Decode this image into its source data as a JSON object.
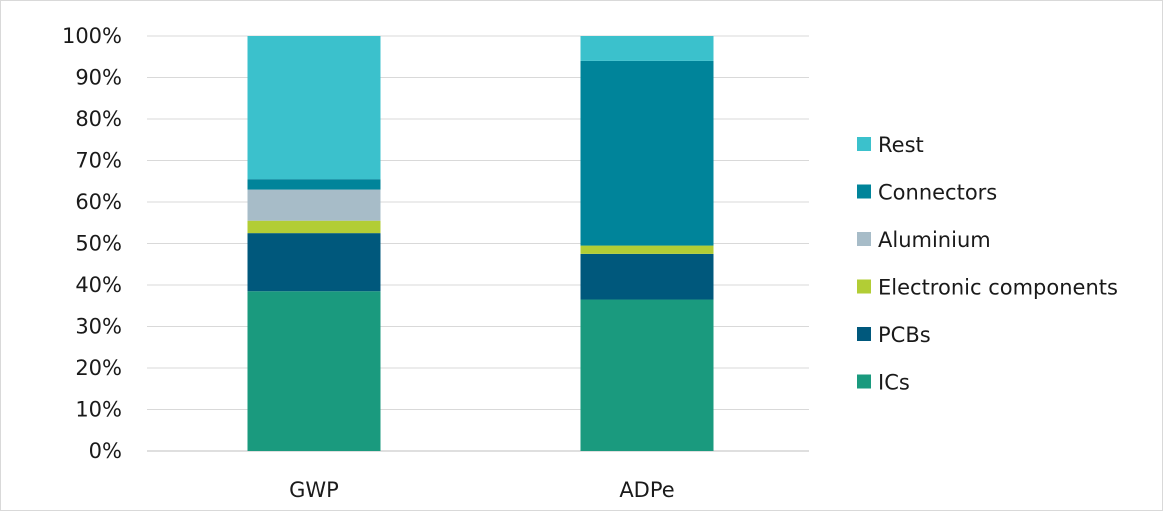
{
  "chart_data": {
    "type": "bar",
    "stacked": true,
    "categories": [
      "GWP",
      "ADPe"
    ],
    "series": [
      {
        "name": "ICs",
        "color": "#1a9a7e",
        "values": [
          38.5,
          36.5
        ]
      },
      {
        "name": "PCBs",
        "color": "#00587c",
        "values": [
          14.0,
          11.0
        ]
      },
      {
        "name": "Electronic components",
        "color": "#b2cd35",
        "values": [
          3.0,
          2.0
        ]
      },
      {
        "name": "Aluminium",
        "color": "#a7bcc8",
        "values": [
          7.5,
          0.0
        ]
      },
      {
        "name": "Connectors",
        "color": "#00849a",
        "values": [
          2.5,
          44.5
        ]
      },
      {
        "name": "Rest",
        "color": "#3bc1cc",
        "values": [
          34.5,
          6.0
        ]
      }
    ],
    "ylim": [
      0,
      100
    ],
    "yticks": [
      "0%",
      "10%",
      "20%",
      "30%",
      "40%",
      "50%",
      "60%",
      "70%",
      "80%",
      "90%",
      "100%"
    ],
    "grid": true,
    "legend_position": "right",
    "legend_order": [
      "Rest",
      "Connectors",
      "Aluminium",
      "Electronic components",
      "PCBs",
      "ICs"
    ]
  }
}
